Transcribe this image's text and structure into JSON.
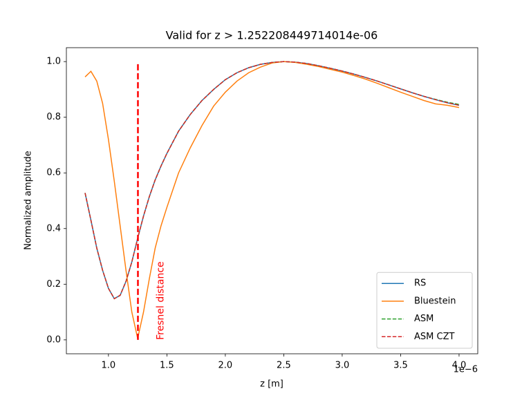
{
  "chart_data": {
    "type": "line",
    "title": "Valid for z > 1.252208449714014e-06",
    "x_label": "z [m]",
    "y_label": "Normalized amplitude",
    "x_offset_text": "1e−6",
    "xlim": [
      0.64,
      4.16
    ],
    "ylim": [
      -0.05,
      1.05
    ],
    "xticks": [
      {
        "value": 1.0,
        "label": "1.0"
      },
      {
        "value": 1.5,
        "label": "1.5"
      },
      {
        "value": 2.0,
        "label": "2.0"
      },
      {
        "value": 2.5,
        "label": "2.5"
      },
      {
        "value": 3.0,
        "label": "3.0"
      },
      {
        "value": 3.5,
        "label": "3.5"
      },
      {
        "value": 4.0,
        "label": "4.0"
      }
    ],
    "yticks": [
      {
        "value": 0.0,
        "label": "0.0"
      },
      {
        "value": 0.2,
        "label": "0.2"
      },
      {
        "value": 0.4,
        "label": "0.4"
      },
      {
        "value": 0.6,
        "label": "0.6"
      },
      {
        "value": 0.8,
        "label": "0.8"
      },
      {
        "value": 1.0,
        "label": "1.0"
      }
    ],
    "grid": false,
    "legend": "lower right",
    "x": [
      0.8,
      0.85,
      0.9,
      0.95,
      1.0,
      1.05,
      1.1,
      1.15,
      1.2,
      1.25,
      1.3,
      1.35,
      1.4,
      1.45,
      1.5,
      1.6,
      1.7,
      1.8,
      1.9,
      2.0,
      2.1,
      2.2,
      2.3,
      2.4,
      2.5,
      2.6,
      2.7,
      2.8,
      2.9,
      3.0,
      3.1,
      3.2,
      3.3,
      3.4,
      3.5,
      3.6,
      3.7,
      3.8,
      3.9,
      4.0
    ],
    "series": [
      {
        "name": "RS",
        "color": "#1f77b4",
        "dashed": false,
        "values": [
          0.528,
          0.43,
          0.33,
          0.25,
          0.185,
          0.148,
          0.16,
          0.21,
          0.28,
          0.365,
          0.445,
          0.515,
          0.575,
          0.625,
          0.67,
          0.75,
          0.81,
          0.86,
          0.9,
          0.935,
          0.96,
          0.978,
          0.99,
          0.997,
          1.0,
          0.998,
          0.993,
          0.985,
          0.976,
          0.966,
          0.955,
          0.943,
          0.93,
          0.916,
          0.902,
          0.888,
          0.875,
          0.863,
          0.852,
          0.843
        ]
      },
      {
        "name": "Bluestein",
        "color": "#ff7f0e",
        "dashed": false,
        "values": [
          0.945,
          0.965,
          0.93,
          0.85,
          0.72,
          0.57,
          0.41,
          0.25,
          0.1,
          0.005,
          0.1,
          0.22,
          0.33,
          0.41,
          0.476,
          0.6,
          0.69,
          0.77,
          0.84,
          0.89,
          0.93,
          0.96,
          0.98,
          0.995,
          1.0,
          0.997,
          0.99,
          0.982,
          0.972,
          0.962,
          0.95,
          0.937,
          0.922,
          0.906,
          0.89,
          0.875,
          0.86,
          0.848,
          0.843,
          0.835
        ]
      },
      {
        "name": "ASM",
        "color": "#2ca02c",
        "dashed": true,
        "values": [
          0.528,
          0.43,
          0.33,
          0.25,
          0.185,
          0.148,
          0.16,
          0.21,
          0.28,
          0.365,
          0.445,
          0.515,
          0.575,
          0.625,
          0.67,
          0.75,
          0.81,
          0.86,
          0.9,
          0.935,
          0.96,
          0.978,
          0.99,
          0.997,
          1.0,
          0.998,
          0.993,
          0.985,
          0.976,
          0.966,
          0.955,
          0.943,
          0.93,
          0.916,
          0.902,
          0.888,
          0.875,
          0.864,
          0.854,
          0.846
        ]
      },
      {
        "name": "ASM CZT",
        "color": "#d62728",
        "dashed": true,
        "values": [
          0.528,
          0.43,
          0.33,
          0.25,
          0.185,
          0.148,
          0.16,
          0.21,
          0.28,
          0.365,
          0.445,
          0.515,
          0.575,
          0.625,
          0.67,
          0.75,
          0.81,
          0.86,
          0.9,
          0.935,
          0.96,
          0.978,
          0.99,
          0.997,
          1.0,
          0.998,
          0.993,
          0.985,
          0.976,
          0.966,
          0.955,
          0.943,
          0.93,
          0.916,
          0.902,
          0.888,
          0.875,
          0.863,
          0.852,
          0.843
        ]
      }
    ],
    "vline": {
      "x": 1.252208449714014,
      "ymin": 0,
      "ymax": 1,
      "color": "#ff0000",
      "label": "Fresnel distance"
    }
  }
}
